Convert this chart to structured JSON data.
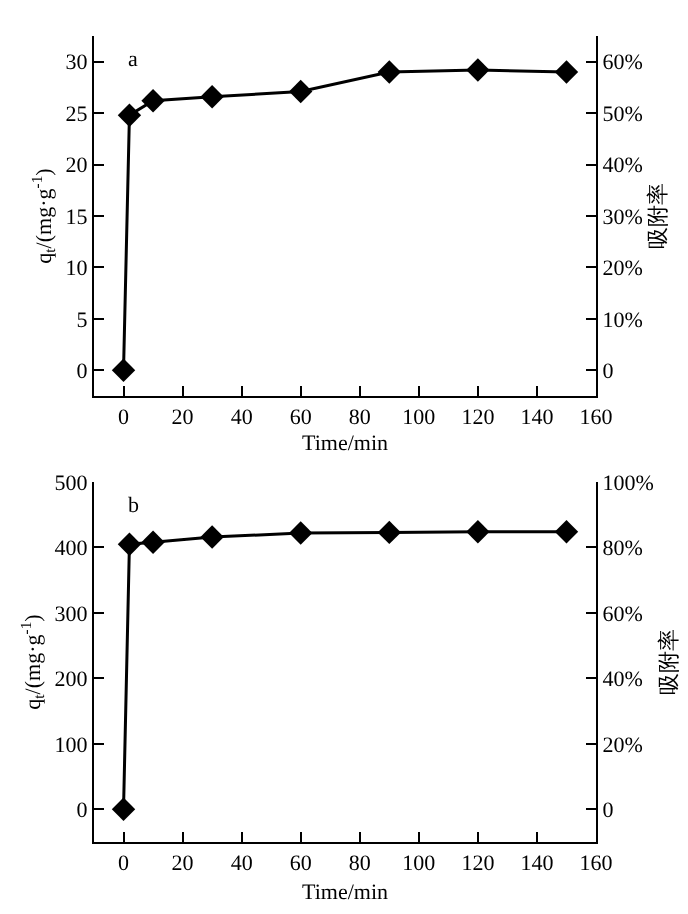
{
  "chart_data": [
    {
      "type": "line",
      "annotations": [
        "a"
      ],
      "xlabel": "Time/min",
      "ylabel": "q$_{t}$/(mg·g$^{-1}$)",
      "y2label": "吸附率",
      "marker": "diamond",
      "line_style": "solid",
      "x": [
        0,
        2,
        10,
        30,
        60,
        90,
        120,
        150
      ],
      "series": [
        {
          "color": "#000000",
          "values": [
            0,
            24.8,
            26.2,
            26.6,
            27.1,
            29.0,
            29.2,
            29.0
          ]
        }
      ],
      "xlim": [
        -10,
        160
      ],
      "xticks": [
        0,
        20,
        40,
        60,
        80,
        100,
        120,
        140,
        160
      ],
      "ylim": [
        -2.5,
        32.5
      ],
      "yticks": [
        0,
        5,
        10,
        15,
        20,
        25,
        30
      ],
      "y2lim": [
        -5,
        65
      ],
      "y2ticks": [
        0,
        {
          "value": 10,
          "label": "10%"
        },
        {
          "value": 20,
          "label": "20%"
        },
        {
          "value": 30,
          "label": "30%"
        },
        {
          "value": 40,
          "label": "40%"
        },
        {
          "value": 50,
          "label": "50%"
        },
        {
          "value": 60,
          "label": "60%"
        }
      ]
    },
    {
      "type": "line",
      "annotations": [
        "b"
      ],
      "xlabel": "Time/min",
      "ylabel": "q$_{t}$/(mg·g$^{-1}$)",
      "y2label": "吸附率",
      "marker": "diamond",
      "line_style": "solid",
      "x": [
        0,
        2,
        10,
        30,
        60,
        90,
        120,
        150
      ],
      "series": [
        {
          "color": "#000000",
          "values": [
            0,
            405,
            408,
            416,
            422,
            423,
            424,
            424
          ]
        }
      ],
      "xlim": [
        -10,
        160
      ],
      "xticks": [
        0,
        20,
        40,
        60,
        80,
        100,
        120,
        140,
        160
      ],
      "ylim": [
        -50,
        500
      ],
      "yticks": [
        0,
        100,
        200,
        300,
        400,
        500
      ],
      "y2lim": [
        -10,
        100
      ],
      "y2ticks": [
        0,
        {
          "value": 20,
          "label": "20%"
        },
        {
          "value": 40,
          "label": "40%"
        },
        {
          "value": 60,
          "label": "60%"
        },
        {
          "value": 80,
          "label": "80%"
        },
        {
          "value": 100,
          "label": "100%"
        }
      ]
    }
  ]
}
